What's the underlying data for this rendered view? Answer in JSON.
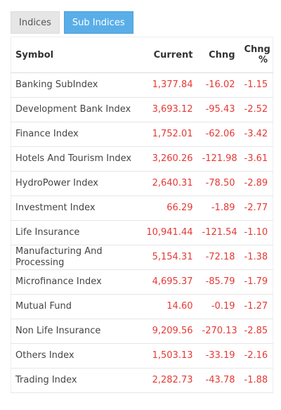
{
  "tabs": [
    "Indices",
    "Sub Indices"
  ],
  "table": {
    "columns": [
      "Symbol",
      "Current",
      "Chng",
      "Chng %"
    ],
    "rows": [
      [
        "Banking SubIndex",
        "1,377.84",
        "-16.02",
        "-1.15"
      ],
      [
        "Development Bank Index",
        "3,693.12",
        "-95.43",
        "-2.52"
      ],
      [
        "Finance Index",
        "1,752.01",
        "-62.06",
        "-3.42"
      ],
      [
        "Hotels And Tourism Index",
        "3,260.26",
        "-121.98",
        "-3.61"
      ],
      [
        "HydroPower Index",
        "2,640.31",
        "-78.50",
        "-2.89"
      ],
      [
        "Investment Index",
        "66.29",
        "-1.89",
        "-2.77"
      ],
      [
        "Life Insurance",
        "10,941.44",
        "-121.54",
        "-1.10"
      ],
      [
        "Manufacturing And Processing",
        "5,154.31",
        "-72.18",
        "-1.38"
      ],
      [
        "Microfinance Index",
        "4,695.37",
        "-85.79",
        "-1.79"
      ],
      [
        "Mutual Fund",
        "14.60",
        "-0.19",
        "-1.27"
      ],
      [
        "Non Life Insurance",
        "9,209.56",
        "-270.13",
        "-2.85"
      ],
      [
        "Others Index",
        "1,503.13",
        "-33.19",
        "-2.16"
      ],
      [
        "Trading Index",
        "2,282.73",
        "-43.78",
        "-1.88"
      ]
    ]
  }
}
